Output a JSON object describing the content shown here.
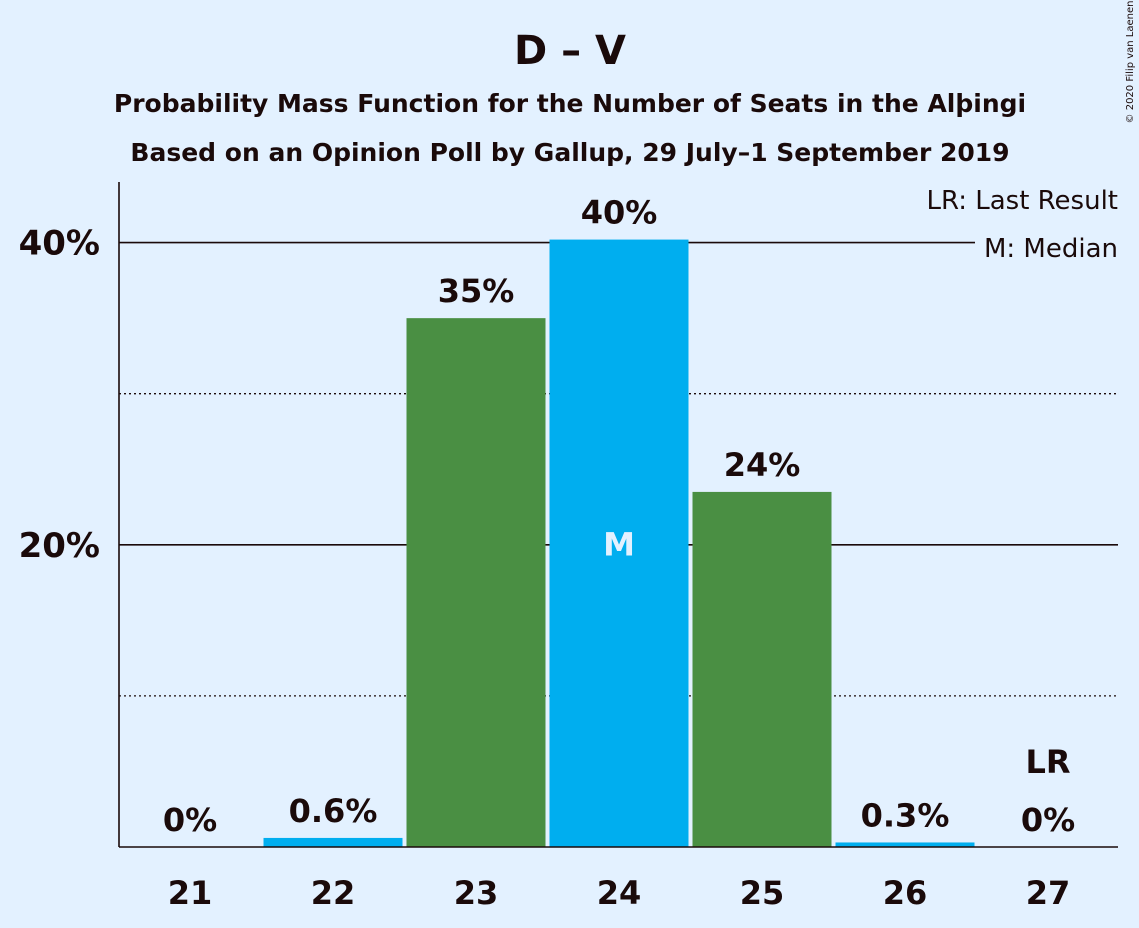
{
  "chart_data": {
    "type": "bar",
    "title": "D – V",
    "subtitle_1": "Probability Mass Function for the Number of Seats in the Alþingi",
    "subtitle_2": "Based on an Opinion Poll by Gallup, 29 July–1 September 2019",
    "copyright": "© 2020 Filip van Laenen",
    "categories": [
      "21",
      "22",
      "23",
      "24",
      "25",
      "26",
      "27"
    ],
    "values": [
      0,
      0.6,
      35,
      40.2,
      23.5,
      0.3,
      0
    ],
    "value_labels": [
      "0%",
      "0.6%",
      "35%",
      "40%",
      "24%",
      "0.3%",
      "0%"
    ],
    "bar_colors": [
      "#00aeef",
      "#00aeef",
      "#4a8f43",
      "#00aeef",
      "#4a8f43",
      "#00aeef",
      "#00aeef"
    ],
    "ylim": [
      0,
      44
    ],
    "ytick_labels": [
      {
        "value": 20,
        "label": "20%"
      },
      {
        "value": 40,
        "label": "40%"
      }
    ],
    "gridlines": {
      "solid": [
        20,
        40
      ],
      "dotted": [
        10,
        30
      ]
    },
    "median_index": 3,
    "median_marker": "M",
    "last_result_index": 6,
    "last_result_marker": "LR",
    "legend": {
      "placement": "top-right",
      "items": [
        "LR: Last Result",
        "M: Median"
      ]
    },
    "colors": {
      "background": "#e3f1ff",
      "blue": "#00aeef",
      "green": "#4a8f43",
      "text": "#1a0a0a"
    }
  }
}
